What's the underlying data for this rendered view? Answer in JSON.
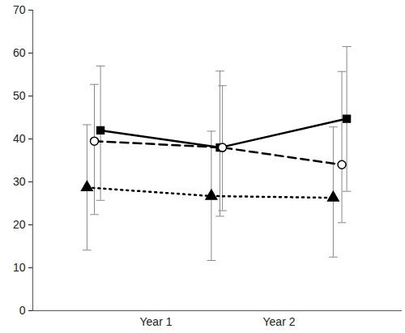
{
  "chart_data": {
    "type": "line",
    "xlim": [
      0,
      3
    ],
    "xticks": [
      {
        "value": 1,
        "label": "Year 1"
      },
      {
        "value": 2,
        "label": "Year 2"
      }
    ],
    "ylim": [
      0,
      70
    ],
    "yticks": [
      0,
      10,
      20,
      30,
      40,
      50,
      60,
      70
    ],
    "grid": false,
    "series": [
      {
        "color": "#000000",
        "marker": "square",
        "line_style": "solid",
        "x": [
          0.55,
          1.52,
          2.55
        ],
        "values": [
          42,
          38,
          44.7
        ],
        "lower": [
          25.7,
          22,
          27.8
        ],
        "upper": [
          57,
          55.8,
          61.5
        ]
      },
      {
        "color": "#000000",
        "marker": "circle-open",
        "line_style": "dashed",
        "x": [
          0.5,
          1.54,
          2.51
        ],
        "values": [
          39.5,
          38,
          34
        ],
        "lower": [
          22.4,
          23.3,
          20.5
        ],
        "upper": [
          52.7,
          52.4,
          55.7
        ]
      },
      {
        "color": "#000000",
        "marker": "triangle",
        "line_style": "dotted",
        "x": [
          0.44,
          1.45,
          2.44
        ],
        "values": [
          28.7,
          26.7,
          26.3
        ],
        "lower": [
          14.1,
          11.7,
          12.5
        ],
        "upper": [
          43.3,
          41.8,
          42.8
        ]
      }
    ]
  }
}
